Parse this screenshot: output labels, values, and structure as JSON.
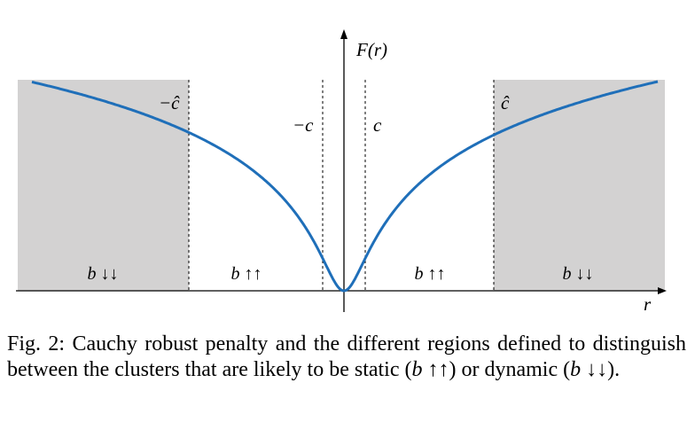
{
  "figure": {
    "y_axis_label": "F(r)",
    "x_axis_label": "r",
    "thresholds": {
      "neg_c_hat": "−ĉ",
      "neg_c": "−c",
      "c": "c",
      "c_hat": "ĉ"
    },
    "regions": [
      {
        "var": "b",
        "arrows": "↓↓"
      },
      {
        "var": "b",
        "arrows": "↑↑"
      },
      {
        "var": "b",
        "arrows": "↑↑"
      },
      {
        "var": "b",
        "arrows": "↓↓"
      }
    ],
    "colors": {
      "curve": "#1f6fb9",
      "shaded_region": "#d3d2d2",
      "axis": "#000000"
    }
  },
  "caption": {
    "lead": "Fig. 2: Cauchy robust penalty and the different regions defined to distinguish between the clusters that are likely to be static (",
    "static_var": "b",
    "static_arrows": " ↑↑",
    "middle": ") or dynamic (",
    "dynamic_var": "b",
    "dynamic_arrows": " ↓↓",
    "tail": ")."
  }
}
